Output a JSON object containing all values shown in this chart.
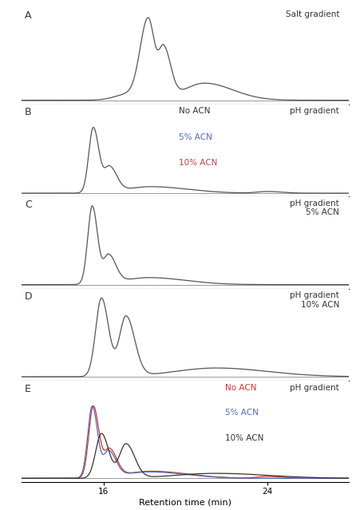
{
  "panel_A": {
    "label": "A",
    "title": "Salt gradient",
    "xlim": [
      6,
      35
    ],
    "xticks": [
      10,
      20,
      30
    ],
    "line_color": "#555555"
  },
  "panel_B": {
    "label": "B",
    "title": "pH gradient",
    "xlim": [
      12,
      28
    ],
    "xticks": [
      16,
      24
    ],
    "line_color": "#555555",
    "legend": [
      {
        "text": "No ACN",
        "color": "#333333"
      },
      {
        "text": "5% ACN",
        "color": "#5566bb"
      },
      {
        "text": "10% ACN",
        "color": "#bb4444"
      }
    ]
  },
  "panel_C": {
    "label": "C",
    "title": "pH gradient\n5% ACN",
    "xlim": [
      12,
      28
    ],
    "xticks": [
      16,
      24
    ],
    "line_color": "#555555"
  },
  "panel_D": {
    "label": "D",
    "title": "pH gradient\n10% ACN",
    "xlim": [
      12,
      28
    ],
    "xticks": [
      16,
      24
    ],
    "line_color": "#555555"
  },
  "panel_E": {
    "label": "E",
    "title": "pH gradient",
    "xlim": [
      12,
      28
    ],
    "xticks": [
      16,
      24
    ],
    "xlabel": "Retention time (min)",
    "legend": [
      {
        "text": "No ACN",
        "color": "#cc3333"
      },
      {
        "text": "5% ACN",
        "color": "#5566bb"
      },
      {
        "text": "10% ACN",
        "color": "#333333"
      }
    ]
  },
  "bg_color": "#ffffff"
}
